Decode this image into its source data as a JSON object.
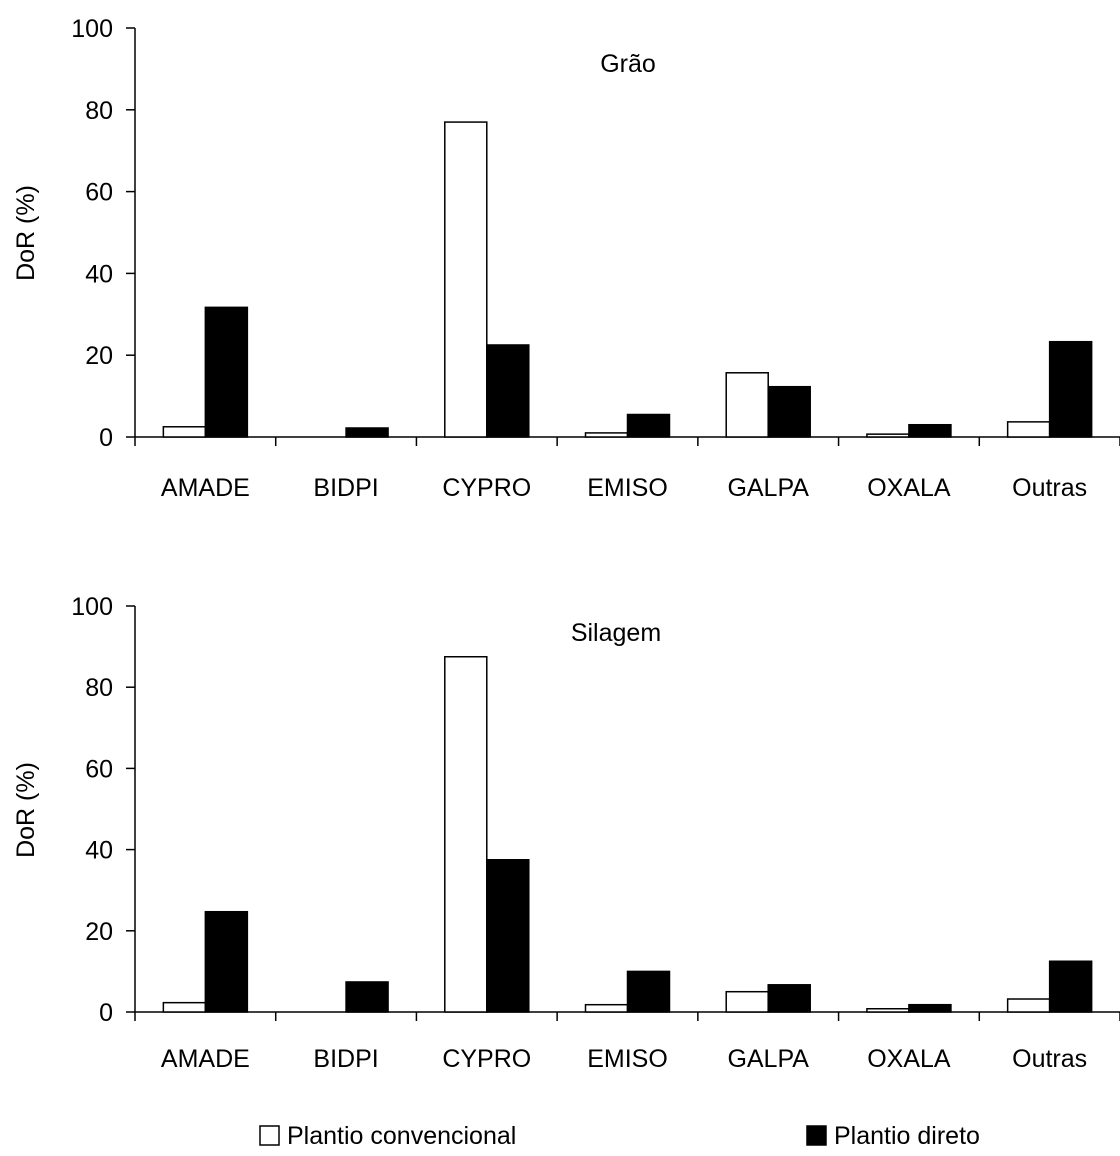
{
  "chart_data": [
    {
      "type": "bar",
      "title": "Grão",
      "ylabel": "DoR (%)",
      "ylim": [
        0,
        100
      ],
      "yticks": [
        0,
        20,
        40,
        60,
        80,
        100
      ],
      "categories": [
        "AMADE",
        "BIDPI",
        "CYPRO",
        "EMISO",
        "GALPA",
        "OXALA",
        "Outras"
      ],
      "series": [
        {
          "name": "Plantio convencional",
          "color": "#ffffff",
          "values": [
            2.5,
            0,
            77,
            1,
            15.7,
            0.7,
            3.7
          ]
        },
        {
          "name": "Plantio direto",
          "color": "#000000",
          "values": [
            31.7,
            2.2,
            22.5,
            5.5,
            12.3,
            3,
            23.3
          ]
        }
      ],
      "grid": false
    },
    {
      "type": "bar",
      "title": "Silagem",
      "ylabel": "DoR (%)",
      "ylim": [
        0,
        100
      ],
      "yticks": [
        0,
        20,
        40,
        60,
        80,
        100
      ],
      "categories": [
        "AMADE",
        "BIDPI",
        "CYPRO",
        "EMISO",
        "GALPA",
        "OXALA",
        "Outras"
      ],
      "series": [
        {
          "name": "Plantio convencional",
          "color": "#ffffff",
          "values": [
            2.3,
            0,
            87.5,
            1.8,
            5,
            0.8,
            3.2
          ]
        },
        {
          "name": "Plantio direto",
          "color": "#000000",
          "values": [
            24.7,
            7.4,
            37.5,
            10,
            6.7,
            1.8,
            12.5
          ]
        }
      ],
      "grid": false
    }
  ],
  "legend": {
    "placement": "bottom",
    "items": [
      {
        "label": "Plantio convencional",
        "color": "#ffffff"
      },
      {
        "label": "Plantio direto",
        "color": "#000000"
      }
    ]
  }
}
